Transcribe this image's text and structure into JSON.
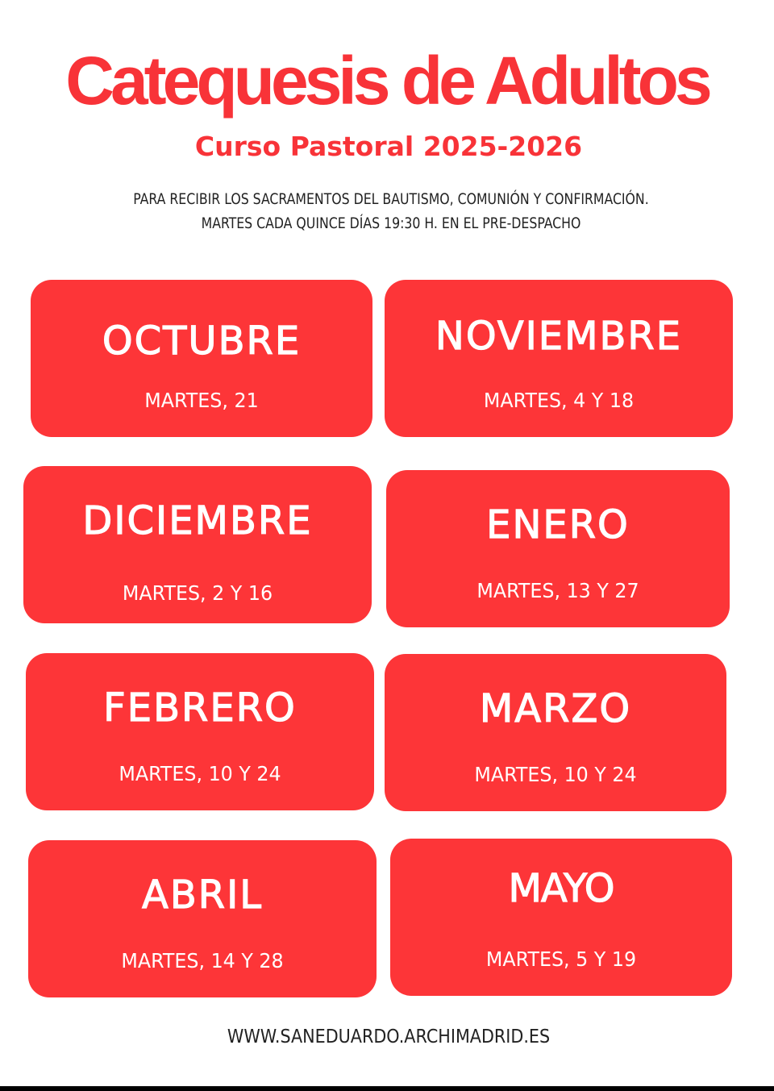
{
  "header": {
    "title": "Catequesis de Adultos",
    "subtitle": "Curso Pastoral 2025-2026",
    "description_line1": "PARA RECIBIR LOS SACRAMENTOS DEL BAUTISMO, COMUNIÓN Y CONFIRMACIÓN.",
    "description_line2": "MARTES CADA QUINCE DÍAS 19:30 H. EN EL PRE-DESPACHO"
  },
  "months": [
    {
      "month": "OCTUBRE",
      "dates": "MARTES, 21"
    },
    {
      "month": "NOVIEMBRE",
      "dates": "MARTES, 4 Y 18"
    },
    {
      "month": "DICIEMBRE",
      "dates": "MARTES, 2 Y 16"
    },
    {
      "month": "ENERO",
      "dates": "MARTES, 13 Y 27"
    },
    {
      "month": "FEBRERO",
      "dates": "MARTES, 10 Y 24"
    },
    {
      "month": "MARZO",
      "dates": "MARTES, 10 Y 24"
    },
    {
      "month": "ABRIL",
      "dates": "MARTES, 14 Y 28"
    },
    {
      "month": "MAYO",
      "dates": "MARTES, 5 Y 19"
    }
  ],
  "footer": {
    "url": "WWW.SANEDUARDO.ARCHIMADRID.ES"
  },
  "colors": {
    "accent": "#f83338",
    "card": "#fd3538",
    "text": "#222222"
  }
}
